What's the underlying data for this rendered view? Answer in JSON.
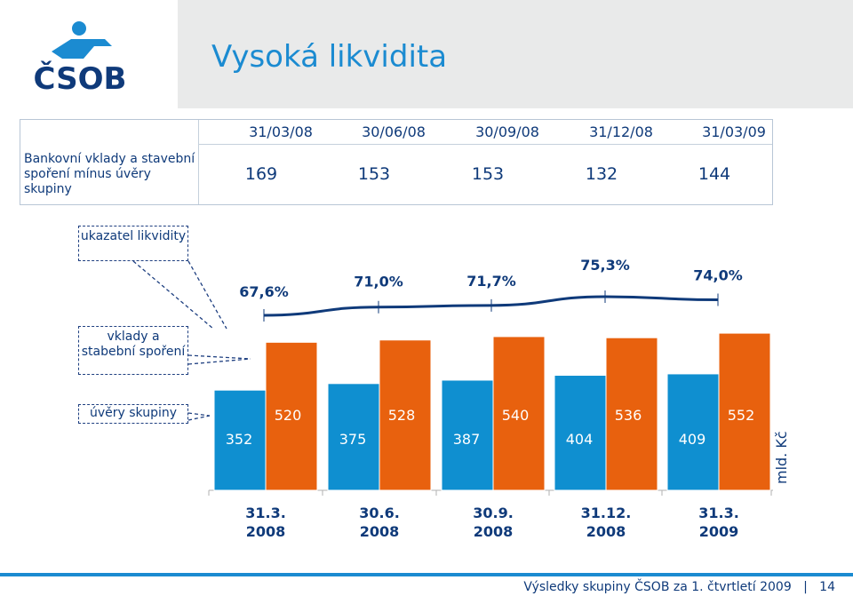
{
  "header": {
    "title": "Vysoká likvidita",
    "logo_text": "ČSOB"
  },
  "table": {
    "row_label": "Bankovní vklady a stavební spoření mínus úvěry skupiny",
    "dates": [
      "31/03/08",
      "30/06/08",
      "30/09/08",
      "31/12/08",
      "31/03/09"
    ],
    "values": [
      "169",
      "153",
      "153",
      "132",
      "144"
    ]
  },
  "labels": {
    "ukazatel": "ukazatel likvidity",
    "vklady": "vklady a stabební spoření",
    "uvery": "úvěry skupiny",
    "unit": "mld. Kč"
  },
  "chart_data": {
    "type": "bar",
    "categories": [
      "31.3. 2008",
      "30.6. 2008",
      "30.9. 2008",
      "31.12. 2008",
      "31.3. 2009"
    ],
    "category_lines": [
      [
        "31.3.",
        "2008"
      ],
      [
        "30.6.",
        "2008"
      ],
      [
        "30.9.",
        "2008"
      ],
      [
        "31.12.",
        "2008"
      ],
      [
        "31.3.",
        "2009"
      ]
    ],
    "series": [
      {
        "name": "úvěry skupiny",
        "values": [
          352,
          375,
          387,
          404,
          409
        ],
        "color": "#0f8fd0"
      },
      {
        "name": "vklady a stabební spoření",
        "values": [
          520,
          528,
          540,
          536,
          552
        ],
        "color": "#e8610e"
      }
    ],
    "line_series": {
      "name": "ukazatel likvidity",
      "values": [
        67.6,
        71.0,
        71.7,
        75.3,
        74.0
      ],
      "labels": [
        "67,6%",
        "71,0%",
        "71,7%",
        "75,3%",
        "74,0%"
      ]
    },
    "ylabel": "mld. Kč"
  },
  "footer": {
    "text": "Výsledky skupiny ČSOB za 1. čtvrtletí 2009",
    "page": "14"
  }
}
